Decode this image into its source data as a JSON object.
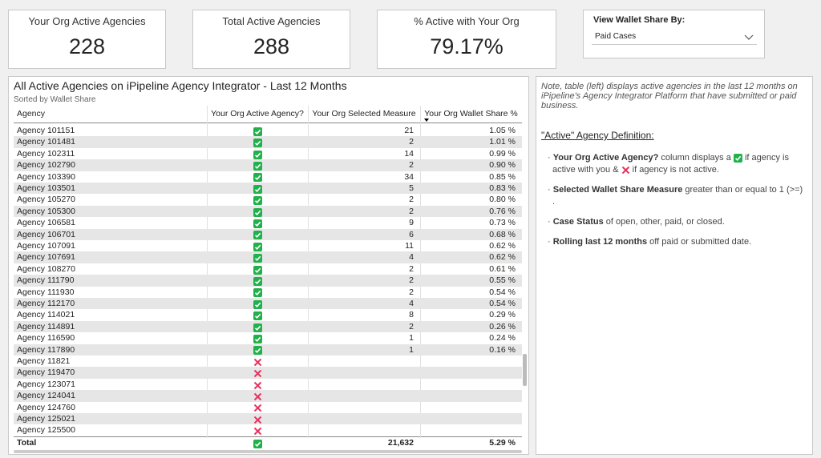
{
  "cards": [
    {
      "label": "Your Org Active Agencies",
      "value": "228"
    },
    {
      "label": "Total Active Agencies",
      "value": "288"
    },
    {
      "label": "% Active with Your Org",
      "value": "79.17%"
    }
  ],
  "slicer": {
    "label": "View Wallet Share By:",
    "value": "Paid Cases"
  },
  "table": {
    "title": "All Active Agencies on iPipeline Agency Integrator - Last 12 Months",
    "subtitle": "Sorted by Wallet Share",
    "columns": [
      "Agency",
      "Your Org Active Agency?",
      "Your Org Selected Measure",
      "Your Org Wallet Share %"
    ],
    "rows": [
      {
        "agency": "Agency 101151",
        "active": true,
        "measure": "21",
        "share": "1.05 %"
      },
      {
        "agency": "Agency 101481",
        "active": true,
        "measure": "2",
        "share": "1.01 %"
      },
      {
        "agency": "Agency 102311",
        "active": true,
        "measure": "14",
        "share": "0.99 %"
      },
      {
        "agency": "Agency 102790",
        "active": true,
        "measure": "2",
        "share": "0.90 %"
      },
      {
        "agency": "Agency 103390",
        "active": true,
        "measure": "34",
        "share": "0.85 %"
      },
      {
        "agency": "Agency 103501",
        "active": true,
        "measure": "5",
        "share": "0.83 %"
      },
      {
        "agency": "Agency 105270",
        "active": true,
        "measure": "2",
        "share": "0.80 %"
      },
      {
        "agency": "Agency 105300",
        "active": true,
        "measure": "2",
        "share": "0.76 %"
      },
      {
        "agency": "Agency 106581",
        "active": true,
        "measure": "9",
        "share": "0.73 %"
      },
      {
        "agency": "Agency 106701",
        "active": true,
        "measure": "6",
        "share": "0.68 %"
      },
      {
        "agency": "Agency 107091",
        "active": true,
        "measure": "11",
        "share": "0.62 %"
      },
      {
        "agency": "Agency 107691",
        "active": true,
        "measure": "4",
        "share": "0.62 %"
      },
      {
        "agency": "Agency 108270",
        "active": true,
        "measure": "2",
        "share": "0.61 %"
      },
      {
        "agency": "Agency 111790",
        "active": true,
        "measure": "2",
        "share": "0.55 %"
      },
      {
        "agency": "Agency 111930",
        "active": true,
        "measure": "2",
        "share": "0.54 %"
      },
      {
        "agency": "Agency 112170",
        "active": true,
        "measure": "4",
        "share": "0.54 %"
      },
      {
        "agency": "Agency 114021",
        "active": true,
        "measure": "8",
        "share": "0.29 %"
      },
      {
        "agency": "Agency 114891",
        "active": true,
        "measure": "2",
        "share": "0.26 %"
      },
      {
        "agency": "Agency 116590",
        "active": true,
        "measure": "1",
        "share": "0.24 %"
      },
      {
        "agency": "Agency 117890",
        "active": true,
        "measure": "1",
        "share": "0.16 %"
      },
      {
        "agency": "Agency 11821",
        "active": false
      },
      {
        "agency": "Agency 119470",
        "active": false
      },
      {
        "agency": "Agency 123071",
        "active": false
      },
      {
        "agency": "Agency 124041",
        "active": false
      },
      {
        "agency": "Agency 124760",
        "active": false
      },
      {
        "agency": "Agency 125021",
        "active": false
      },
      {
        "agency": "Agency 125500",
        "active": false
      }
    ],
    "total": {
      "agency": "Total",
      "active": true,
      "measure": "21,632",
      "share": "5.29 %"
    }
  },
  "notes": {
    "intro": "Note, table (left) displays active agencies in the last 12 months on iPipeline's Agency Integrator Platform that have submitted or paid business.",
    "heading": "\"Active\" Agency Definition:",
    "bullets": [
      {
        "bold": "Your Org Active Agency?",
        "parts": [
          " column displays a ",
          " if agency is active with you & ",
          " if agency is not active."
        ]
      },
      {
        "bold": "Selected Wallet Share Measure",
        "parts": [
          " greater than or equal to 1 (>=) ."
        ]
      },
      {
        "bold": "Case Status",
        "parts": [
          " of open, other, paid, or closed."
        ]
      },
      {
        "bold": "Rolling last 12 months",
        "parts": [
          " off paid or submitted date."
        ]
      }
    ]
  }
}
